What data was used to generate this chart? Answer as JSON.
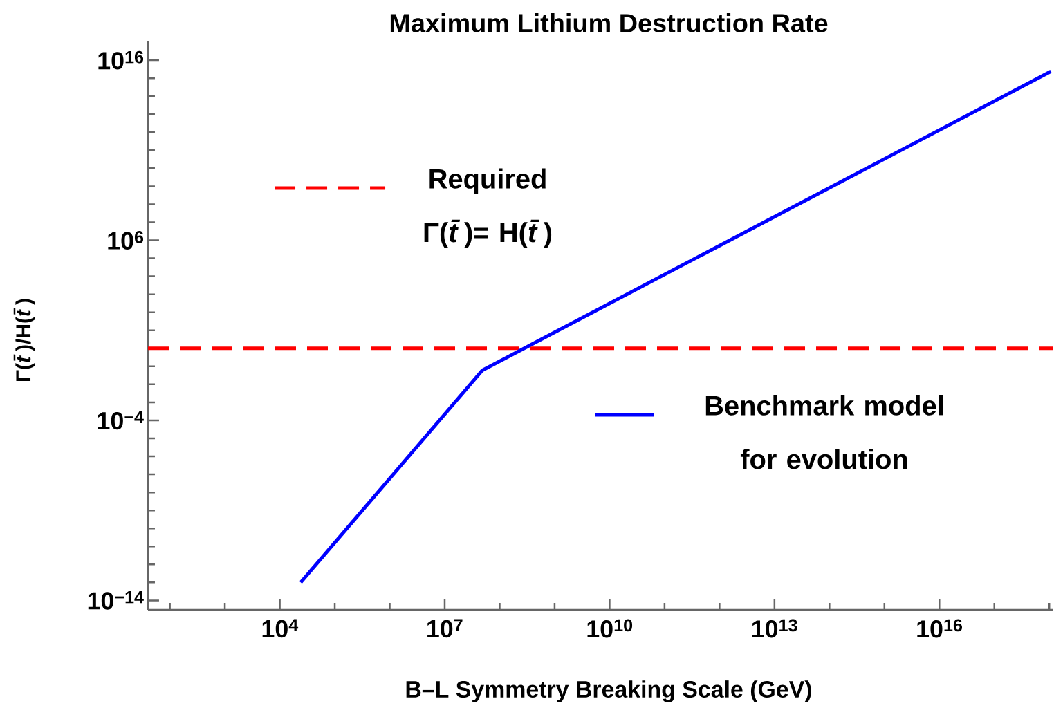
{
  "chart_data": {
    "type": "line",
    "title": "Maximum Lithium Destruction Rate",
    "xlabel": "B–L Symmetry Breaking Scale (GeV)",
    "ylabel": "Γ(*t̄*)/H(*t̄*)",
    "log": "xy",
    "legend": "top left",
    "grid": false,
    "xlim": [
      40,
      1.15e+18
    ],
    "ylim": [
      3e-15,
      1.1e+17
    ],
    "xticks": [
      {
        "value": 100,
        "label": null
      },
      {
        "value": 1000,
        "label": null
      },
      {
        "value": 10000,
        "label": "10$^{4}$"
      },
      {
        "value": 100000.0,
        "label": null
      },
      {
        "value": 1000000.0,
        "label": null
      },
      {
        "value": 10000000.0,
        "label": "10$^{7}$"
      },
      {
        "value": 100000000.0,
        "label": null
      },
      {
        "value": 1000000000.0,
        "label": null
      },
      {
        "value": 10000000000.0,
        "label": "10$^{10}$"
      },
      {
        "value": 100000000000.0,
        "label": null
      },
      {
        "value": 1000000000000.0,
        "label": null
      },
      {
        "value": 10000000000000.0,
        "label": "10$^{13}$"
      },
      {
        "value": 100000000000000.0,
        "label": null
      },
      {
        "value": 1000000000000000.0,
        "label": null
      },
      {
        "value": 1e+16,
        "label": "10$^{16}$"
      },
      {
        "value": 1e+17,
        "label": null
      },
      {
        "value": 1e+18,
        "label": null
      }
    ],
    "yticks": [
      {
        "value": 1e-14,
        "label": "10$^{−14}$"
      },
      {
        "value": 1e-13,
        "label": null
      },
      {
        "value": 1e-12,
        "label": null
      },
      {
        "value": 1e-11,
        "label": null
      },
      {
        "value": 1e-10,
        "label": null
      },
      {
        "value": 1e-09,
        "label": null
      },
      {
        "value": 1e-08,
        "label": null
      },
      {
        "value": 1e-07,
        "label": null
      },
      {
        "value": 1e-06,
        "label": null
      },
      {
        "value": 1e-05,
        "label": null
      },
      {
        "value": 0.0001,
        "label": "10$^{−4}$"
      },
      {
        "value": 0.001,
        "label": null
      },
      {
        "value": 0.01,
        "label": null
      },
      {
        "value": 0.1,
        "label": null
      },
      {
        "value": 1,
        "label": null
      },
      {
        "value": 10,
        "label": null
      },
      {
        "value": 100,
        "label": null
      },
      {
        "value": 1000,
        "label": null
      },
      {
        "value": 10000.0,
        "label": null
      },
      {
        "value": 100000.0,
        "label": null
      },
      {
        "value": 1000000.0,
        "label": "10$^{6}$"
      },
      {
        "value": 10000000.0,
        "label": null
      },
      {
        "value": 100000000.0,
        "label": null
      },
      {
        "value": 1000000000.0,
        "label": null
      },
      {
        "value": 10000000000.0,
        "label": null
      },
      {
        "value": 100000000000.0,
        "label": null
      },
      {
        "value": 1000000000000.0,
        "label": null
      },
      {
        "value": 10000000000000.0,
        "label": null
      },
      {
        "value": 100000000000000.0,
        "label": null
      },
      {
        "value": 1000000000000000.0,
        "label": null
      },
      {
        "value": 1e+16,
        "label": "10$^{16}$"
      }
    ],
    "series": [
      {
        "name": "Required Γ(*t̄*)= H(*t̄*)",
        "color": "#ff0000",
        "line_style": "dashed",
        "x": [
          40,
          1.15e+18
        ],
        "values": [
          1,
          1
        ]
      },
      {
        "name": "Benchmark model for evolution",
        "color": "#0000ff",
        "line_style": "solid",
        "x": [
          24000.0,
          48000000.0,
          1.07e+18
        ],
        "values": [
          1e-13,
          0.059,
          2400000000000000.0
        ]
      }
    ]
  }
}
